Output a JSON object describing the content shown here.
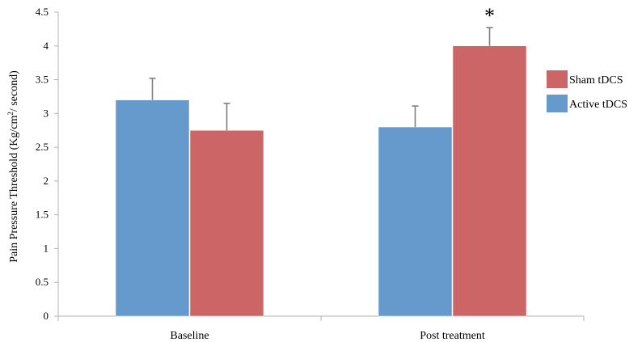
{
  "chart_data": {
    "type": "bar",
    "ylabel_prefix": "Pain Pressure Threshold (Kg/cm",
    "ylabel_sup": "2",
    "ylabel_suffix": "/ second)",
    "categories": [
      "Baseline",
      "Post treatment"
    ],
    "ylim": [
      0,
      4.5
    ],
    "yticks": [
      0,
      0.5,
      1,
      1.5,
      2,
      2.5,
      3,
      3.5,
      4,
      4.5
    ],
    "ytick_labels": [
      "0",
      "0.5",
      "1",
      "1.5",
      "2",
      "2.5",
      "3",
      "3.5",
      "4",
      "4.5"
    ],
    "grid": false,
    "legend_position": "right",
    "series": [
      {
        "name": "Active tDCS",
        "color": "#6699CC",
        "values": [
          3.2,
          2.8
        ],
        "errors": [
          0.32,
          0.31
        ]
      },
      {
        "name": "Sham tDCS",
        "color": "#CC6666",
        "values": [
          2.75,
          4.0
        ],
        "errors": [
          0.4,
          0.27
        ]
      }
    ],
    "legend": [
      {
        "name": "Sham tDCS",
        "color": "#CC6666"
      },
      {
        "name": "Active tDCS",
        "color": "#6699CC"
      }
    ],
    "annotations": [
      {
        "text": "*",
        "series": 1,
        "category": 1
      }
    ]
  }
}
